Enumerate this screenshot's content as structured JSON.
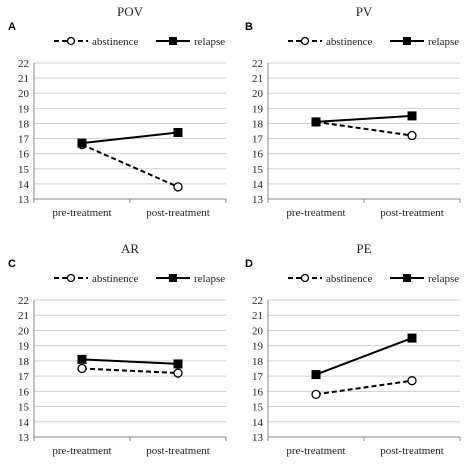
{
  "chart_data": [
    {
      "type": "line",
      "panel": "A",
      "title": "POV",
      "categories": [
        "pre-treatment",
        "post-treatment"
      ],
      "ylim": [
        13,
        22
      ],
      "yticks": [
        13,
        14,
        15,
        16,
        17,
        18,
        19,
        20,
        21,
        22
      ],
      "grid": true,
      "legend_position": "top",
      "series": [
        {
          "name": "abstinence",
          "values": [
            16.6,
            13.8
          ],
          "style": "dashed",
          "marker": "open-circle"
        },
        {
          "name": "relapse",
          "values": [
            16.7,
            17.4
          ],
          "style": "solid",
          "marker": "filled-square"
        }
      ]
    },
    {
      "type": "line",
      "panel": "B",
      "title": "PV",
      "categories": [
        "pre-treatment",
        "post-treatment"
      ],
      "ylim": [
        13,
        22
      ],
      "yticks": [
        13,
        14,
        15,
        16,
        17,
        18,
        19,
        20,
        21,
        22
      ],
      "grid": true,
      "legend_position": "top",
      "series": [
        {
          "name": "abstinence",
          "values": [
            18.1,
            17.2
          ],
          "style": "dashed",
          "marker": "open-circle"
        },
        {
          "name": "relapse",
          "values": [
            18.1,
            18.5
          ],
          "style": "solid",
          "marker": "filled-square"
        }
      ]
    },
    {
      "type": "line",
      "panel": "C",
      "title": "AR",
      "categories": [
        "pre-treatment",
        "post-treatment"
      ],
      "ylim": [
        13,
        22
      ],
      "yticks": [
        13,
        14,
        15,
        16,
        17,
        18,
        19,
        20,
        21,
        22
      ],
      "grid": true,
      "legend_position": "top",
      "series": [
        {
          "name": "abstinence",
          "values": [
            17.5,
            17.2
          ],
          "style": "dashed",
          "marker": "open-circle"
        },
        {
          "name": "relapse",
          "values": [
            18.1,
            17.8
          ],
          "style": "solid",
          "marker": "filled-square"
        }
      ]
    },
    {
      "type": "line",
      "panel": "D",
      "title": "PE",
      "categories": [
        "pre-treatment",
        "post-treatment"
      ],
      "ylim": [
        13,
        22
      ],
      "yticks": [
        13,
        14,
        15,
        16,
        17,
        18,
        19,
        20,
        21,
        22
      ],
      "grid": true,
      "legend_position": "top",
      "series": [
        {
          "name": "abstinence",
          "values": [
            15.8,
            16.7
          ],
          "style": "dashed",
          "marker": "open-circle"
        },
        {
          "name": "relapse",
          "values": [
            17.1,
            19.5
          ],
          "style": "solid",
          "marker": "filled-square"
        }
      ]
    }
  ],
  "colors": {
    "line": "#000000",
    "grid": "#d0d0d0",
    "axis": "#888888",
    "text": "#222222",
    "marker_open_fill": "#ffffff"
  }
}
